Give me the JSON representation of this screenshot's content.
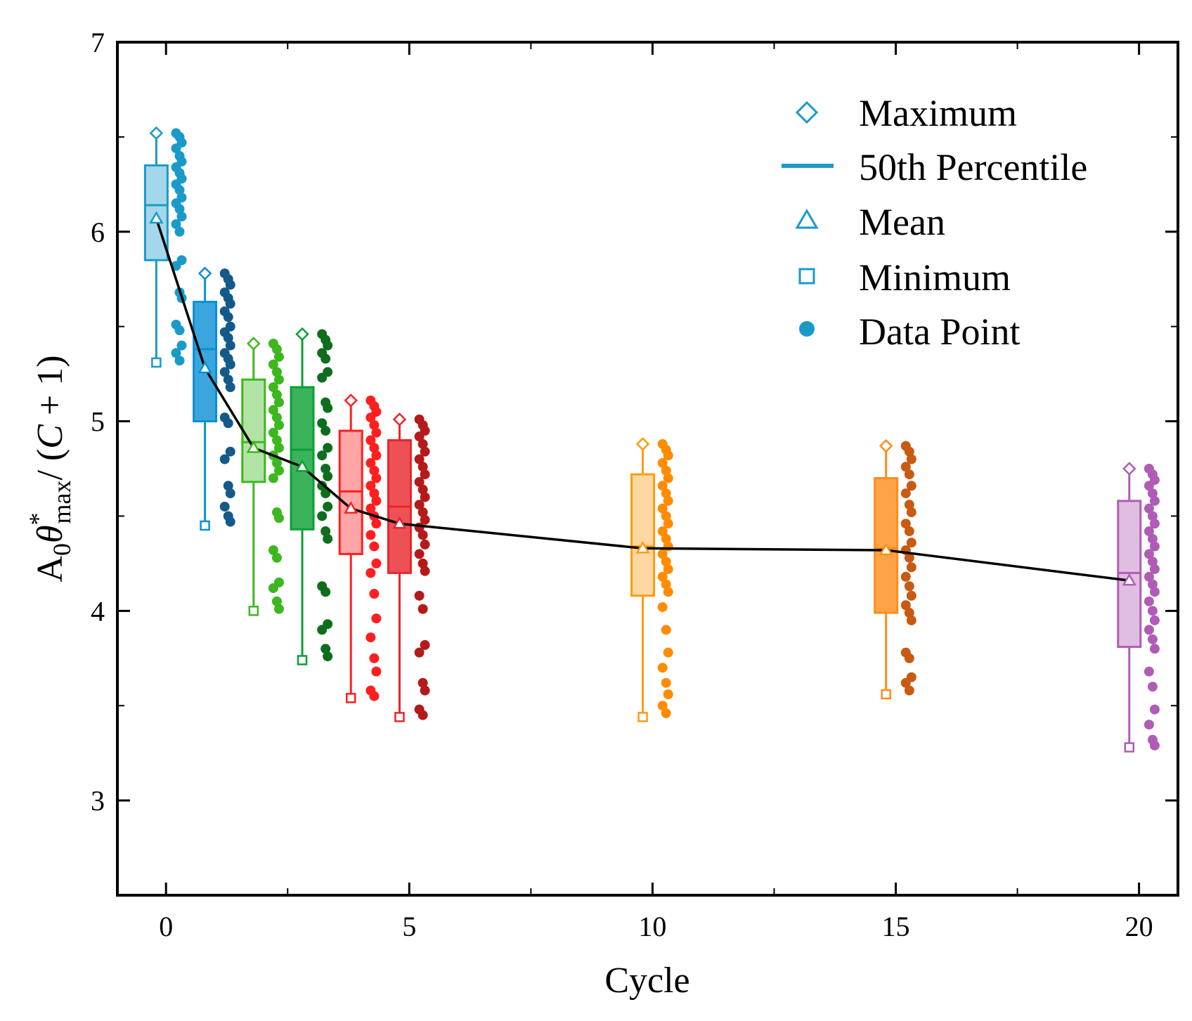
{
  "chart_data": {
    "type": "box",
    "xlabel": "Cycle",
    "ylabel": {
      "base": "A",
      "sub1": "0",
      "theta": "θ",
      "star": "*",
      "sub2": "max",
      "rest": "/ (",
      "c": "C",
      "tail": " + 1)"
    },
    "xlim": [
      -1,
      20.8
    ],
    "ylim": [
      2.5,
      7
    ],
    "xticks": [
      "0",
      "5",
      "10",
      "15",
      "20"
    ],
    "yticks": [
      "3",
      "4",
      "5",
      "6",
      "7"
    ],
    "legend": {
      "maximum": "Maximum",
      "median": "50th Percentile",
      "mean": "Mean",
      "minimum": "Minimum",
      "data_point": "Data Point"
    },
    "legend_color": "#1a9ac9",
    "series": [
      {
        "cycle": 0,
        "color": "#1a9ac9",
        "dark": "#1a9ac9",
        "max": 6.52,
        "q3": 6.35,
        "median": 6.14,
        "q1": 5.85,
        "mean": 6.07,
        "min": 5.31,
        "points": [
          6.52,
          6.5,
          6.47,
          6.44,
          6.4,
          6.37,
          6.34,
          6.31,
          6.28,
          6.25,
          6.22,
          6.18,
          6.15,
          6.12,
          6.08,
          6.04,
          6.0,
          5.85,
          5.82,
          5.68,
          5.65,
          5.51,
          5.48,
          5.4,
          5.36,
          5.32
        ]
      },
      {
        "cycle": 1,
        "color": "#0a8fd6",
        "dark": "#135a8a",
        "max": 5.78,
        "q3": 5.63,
        "median": 5.38,
        "q1": 5.0,
        "mean": 5.28,
        "min": 4.45,
        "points": [
          5.78,
          5.75,
          5.72,
          5.68,
          5.65,
          5.62,
          5.58,
          5.55,
          5.5,
          5.47,
          5.44,
          5.4,
          5.36,
          5.33,
          5.3,
          5.26,
          5.22,
          5.18,
          5.02,
          4.99,
          4.84,
          4.8,
          4.66,
          4.62,
          4.55,
          4.5,
          4.47
        ]
      },
      {
        "cycle": 2,
        "color": "#3cb81e",
        "dark": "#3cb81e",
        "max": 5.41,
        "q3": 5.22,
        "median": 4.89,
        "q1": 4.68,
        "mean": 4.86,
        "min": 4.0,
        "points": [
          5.41,
          5.38,
          5.34,
          5.3,
          5.26,
          5.22,
          5.18,
          5.14,
          5.1,
          5.06,
          5.02,
          4.98,
          4.94,
          4.9,
          4.86,
          4.82,
          4.78,
          4.74,
          4.7,
          4.52,
          4.49,
          4.32,
          4.28,
          4.15,
          4.12,
          4.05,
          4.01
        ]
      },
      {
        "cycle": 3,
        "color": "#0aa034",
        "dark": "#0f6e1e",
        "max": 5.46,
        "q3": 5.18,
        "median": 4.85,
        "q1": 4.43,
        "mean": 4.76,
        "min": 3.74,
        "points": [
          5.46,
          5.43,
          5.4,
          5.36,
          5.33,
          5.26,
          5.23,
          5.1,
          5.07,
          4.99,
          4.95,
          4.86,
          4.82,
          4.75,
          4.71,
          4.66,
          4.62,
          4.55,
          4.5,
          4.42,
          4.38,
          4.13,
          4.1,
          3.93,
          3.9,
          3.8,
          3.76
        ]
      },
      {
        "cycle": 4,
        "color": "#ff1f1f",
        "dark": "#ff1f1f",
        "max": 5.11,
        "q3": 4.95,
        "median": 4.63,
        "q1": 4.3,
        "mean": 4.54,
        "min": 3.54,
        "points": [
          5.11,
          5.08,
          5.05,
          5.02,
          4.98,
          4.94,
          4.9,
          4.86,
          4.82,
          4.78,
          4.74,
          4.7,
          4.66,
          4.62,
          4.58,
          4.54,
          4.5,
          4.46,
          4.4,
          4.34,
          4.25,
          4.2,
          4.09,
          3.96,
          3.86,
          3.75,
          3.68,
          3.58,
          3.55
        ]
      },
      {
        "cycle": 5,
        "color": "#e8262b",
        "dark": "#b51a1a",
        "max": 5.01,
        "q3": 4.9,
        "median": 4.55,
        "q1": 4.2,
        "mean": 4.46,
        "min": 3.44,
        "points": [
          5.01,
          4.98,
          4.95,
          4.92,
          4.88,
          4.84,
          4.8,
          4.76,
          4.72,
          4.68,
          4.64,
          4.6,
          4.56,
          4.52,
          4.48,
          4.44,
          4.4,
          4.35,
          4.3,
          4.25,
          4.21,
          4.08,
          4.01,
          3.82,
          3.78,
          3.62,
          3.58,
          3.48,
          3.45
        ]
      },
      {
        "cycle": 10,
        "color": "#ff9a14",
        "dark": "#ff8c00",
        "max": 4.88,
        "q3": 4.72,
        "median": 4.34,
        "q1": 4.08,
        "mean": 4.33,
        "min": 3.44,
        "points": [
          4.88,
          4.85,
          4.82,
          4.78,
          4.74,
          4.7,
          4.66,
          4.62,
          4.58,
          4.54,
          4.5,
          4.46,
          4.42,
          4.38,
          4.34,
          4.3,
          4.26,
          4.22,
          4.18,
          4.14,
          4.1,
          4.02,
          3.9,
          3.78,
          3.7,
          3.62,
          3.56,
          3.5,
          3.46
        ]
      },
      {
        "cycle": 15,
        "color": "#ff8c1a",
        "dark": "#c85a12",
        "max": 4.87,
        "q3": 4.7,
        "median": 4.33,
        "q1": 3.99,
        "mean": 4.32,
        "min": 3.56,
        "points": [
          4.87,
          4.84,
          4.8,
          4.76,
          4.72,
          4.66,
          4.62,
          4.56,
          4.52,
          4.46,
          4.42,
          4.36,
          4.32,
          4.28,
          4.23,
          4.18,
          4.13,
          4.08,
          4.03,
          3.99,
          3.95,
          3.78,
          3.75,
          3.65,
          3.62,
          3.58
        ]
      },
      {
        "cycle": 20,
        "color": "#b05cb6",
        "dark": "#b05cb6",
        "max": 4.75,
        "q3": 4.58,
        "median": 4.2,
        "q1": 3.81,
        "mean": 4.16,
        "min": 3.28,
        "points": [
          4.75,
          4.72,
          4.69,
          4.66,
          4.62,
          4.58,
          4.54,
          4.5,
          4.46,
          4.42,
          4.38,
          4.34,
          4.3,
          4.26,
          4.22,
          4.18,
          4.14,
          4.1,
          4.05,
          4.0,
          3.95,
          3.9,
          3.85,
          3.8,
          3.68,
          3.6,
          3.48,
          3.4,
          3.32,
          3.29
        ]
      }
    ]
  }
}
